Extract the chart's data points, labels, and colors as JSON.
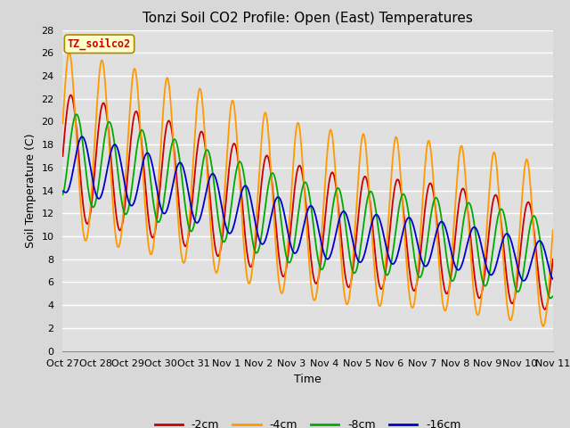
{
  "title": "Tonzi Soil CO2 Profile: Open (East) Temperatures",
  "xlabel": "Time",
  "ylabel": "Soil Temperature (C)",
  "ylim": [
    0,
    28
  ],
  "yticks": [
    0,
    2,
    4,
    6,
    8,
    10,
    12,
    14,
    16,
    18,
    20,
    22,
    24,
    26,
    28
  ],
  "x_labels": [
    "Oct 27",
    "Oct 28",
    "Oct 29",
    "Oct 30",
    "Oct 31",
    "Nov 1",
    "Nov 2",
    "Nov 3",
    "Nov 4",
    "Nov 5",
    "Nov 6",
    "Nov 7",
    "Nov 8",
    "Nov 9",
    "Nov 10",
    "Nov 11"
  ],
  "colors": {
    "-2cm": "#cc0000",
    "-4cm": "#ff9900",
    "-8cm": "#00aa00",
    "-16cm": "#0000cc"
  },
  "annotation_text": "TZ_soilco2",
  "annotation_color": "#cc0000",
  "annotation_bg": "#ffffcc",
  "plot_bg_color": "#e0e0e0",
  "fig_bg_color": "#d8d8d8",
  "grid_color": "#ffffff",
  "line_width": 1.3
}
